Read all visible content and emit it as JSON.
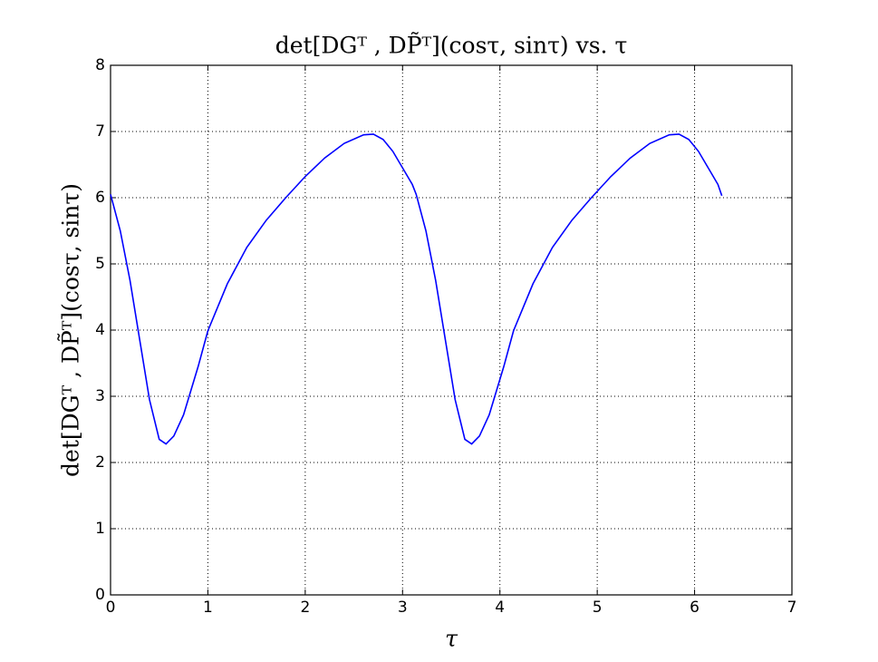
{
  "chart_data": {
    "type": "line",
    "title": "det[DGᵀ , DP̃ᵀ](cosτ, sinτ) vs. τ",
    "xlabel": "τ",
    "ylabel": "det[DGᵀ , DP̃ᵀ](cosτ, sinτ)",
    "x": [
      0,
      0.1,
      0.2,
      0.3,
      0.4,
      0.5,
      0.57,
      0.65,
      0.75,
      0.9,
      1.0,
      1.2,
      1.4,
      1.6,
      1.8,
      2.0,
      2.2,
      2.4,
      2.6,
      2.7,
      2.8,
      2.9,
      3.0,
      3.1,
      3.14,
      3.24,
      3.34,
      3.44,
      3.54,
      3.64,
      3.71,
      3.79,
      3.89,
      4.04,
      4.14,
      4.34,
      4.54,
      4.74,
      4.94,
      5.14,
      5.34,
      5.54,
      5.74,
      5.84,
      5.94,
      6.04,
      6.14,
      6.24,
      6.28
    ],
    "values": [
      6.05,
      5.5,
      4.75,
      3.85,
      2.95,
      2.35,
      2.28,
      2.4,
      2.72,
      3.45,
      3.99,
      4.7,
      5.25,
      5.66,
      6.0,
      6.32,
      6.6,
      6.82,
      6.95,
      6.96,
      6.88,
      6.7,
      6.45,
      6.2,
      6.05,
      5.5,
      4.75,
      3.85,
      2.95,
      2.35,
      2.28,
      2.4,
      2.72,
      3.45,
      3.99,
      4.7,
      5.25,
      5.66,
      6.0,
      6.32,
      6.6,
      6.82,
      6.95,
      6.96,
      6.88,
      6.7,
      6.45,
      6.2,
      6.03
    ],
    "color": "#0000ff",
    "xlim": [
      0,
      7
    ],
    "xticks": [
      0,
      1,
      2,
      3,
      4,
      5,
      6,
      7
    ],
    "ylim": [
      0,
      8
    ],
    "yticks": [
      0,
      1,
      2,
      3,
      4,
      5,
      6,
      7,
      8
    ],
    "grid": true
  }
}
